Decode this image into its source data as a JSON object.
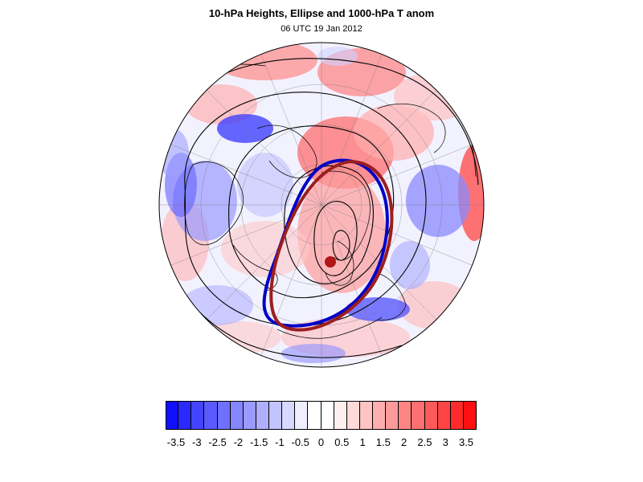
{
  "header": {
    "title": "10-hPa Heights, Ellipse and 1000-hPa T anom",
    "subtitle": "06 UTC 19 Jan 2012"
  },
  "map": {
    "projection": "north-polar-stereographic",
    "fields": [
      "1000-hPa temperature anomaly (shaded)",
      "10-hPa geopotential height contours",
      "vortex ellipse"
    ],
    "ellipse_colors": {
      "blue": "#0000c8",
      "red": "#9b1e1e"
    },
    "centroid_color": "#b01818"
  },
  "colorbar": {
    "labels": [
      "-3.5",
      "-3",
      "-2.5",
      "-2",
      "-1.5",
      "-1",
      "-0.5",
      "0",
      "0.5",
      "1",
      "1.5",
      "2",
      "2.5",
      "3",
      "3.5"
    ],
    "colors": [
      "#1010ff",
      "#2a2aff",
      "#4444ff",
      "#5a5aff",
      "#7070ff",
      "#8585ff",
      "#9a9aff",
      "#afafff",
      "#c3c3ff",
      "#d8d8ff",
      "#eeeeff",
      "#ffffff",
      "#ffffff",
      "#ffeeee",
      "#ffd8d8",
      "#ffc3c3",
      "#ffafaf",
      "#ff9a9a",
      "#ff8585",
      "#ff7070",
      "#ff5a5a",
      "#ff4444",
      "#ff2a2a",
      "#ff1010"
    ]
  }
}
